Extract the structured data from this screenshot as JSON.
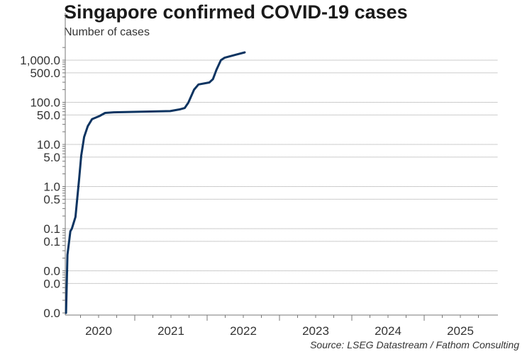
{
  "chart_data": {
    "type": "line",
    "title": "Singapore confirmed COVID-19 cases",
    "subtitle": "Number of cases",
    "source": "Source: LSEG Datastream / Fathom Consulting",
    "xlabel": "",
    "ylabel": "Number of cases",
    "yscale": "log",
    "ylim": [
      0.001,
      2000
    ],
    "xlim": [
      2020.04,
      2025.99
    ],
    "grid": true,
    "y_gridlines": [
      1000,
      500,
      100,
      50,
      10,
      5,
      1,
      0.5,
      0.1,
      0.05,
      0.01,
      0.005
    ],
    "y_ticks": [
      {
        "value": 1000,
        "label": "1,000.0"
      },
      {
        "value": 500,
        "label": "500.0"
      },
      {
        "value": 100,
        "label": "100.0"
      },
      {
        "value": 50,
        "label": "50.0"
      },
      {
        "value": 10,
        "label": "10.0"
      },
      {
        "value": 5,
        "label": "5.0"
      },
      {
        "value": 1,
        "label": "1.0"
      },
      {
        "value": 0.5,
        "label": "0.5"
      },
      {
        "value": 0.1,
        "label": "0.1"
      },
      {
        "value": 0.05,
        "label": "0.1"
      },
      {
        "value": 0.01,
        "label": "0.0"
      },
      {
        "value": 0.005,
        "label": "0.0"
      },
      {
        "value": 0.001,
        "label": "0.0"
      }
    ],
    "x_ticks": [
      "2020",
      "2021",
      "2022",
      "2023",
      "2024",
      "2025"
    ],
    "series": [
      {
        "name": "Singapore confirmed COVID-19 cases",
        "color": "#0d3461",
        "x": [
          2020.05,
          2020.07,
          2020.11,
          2020.13,
          2020.18,
          2020.23,
          2020.26,
          2020.3,
          2020.35,
          2020.41,
          2020.51,
          2020.59,
          2020.71,
          2021.1,
          2021.49,
          2021.62,
          2021.69,
          2021.74,
          2021.82,
          2021.88,
          2022.03,
          2022.08,
          2022.13,
          2022.19,
          2022.24,
          2022.4,
          2022.52
        ],
        "values": [
          0.001,
          0.024,
          0.087,
          0.1,
          0.19,
          1.48,
          5.4,
          15,
          27,
          40,
          47,
          56,
          58,
          60,
          62,
          68,
          73,
          98,
          200,
          265,
          295,
          355,
          600,
          1000,
          1140,
          1350,
          1530
        ]
      }
    ]
  }
}
